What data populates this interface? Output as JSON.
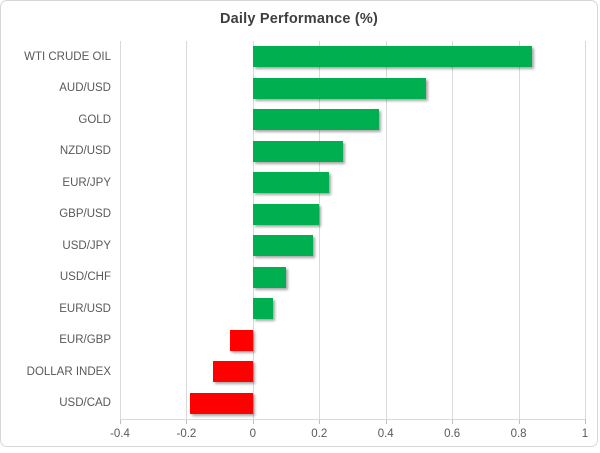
{
  "chart": {
    "title": "Daily Performance (%)"
  },
  "chart_data": {
    "type": "bar",
    "orientation": "horizontal",
    "title": "Daily Performance (%)",
    "categories": [
      "WTI CRUDE OIL",
      "AUD/USD",
      "GOLD",
      "NZD/USD",
      "EUR/JPY",
      "GBP/USD",
      "USD/JPY",
      "USD/CHF",
      "EUR/USD",
      "EUR/GBP",
      "DOLLAR INDEX",
      "USD/CAD"
    ],
    "values": [
      0.84,
      0.52,
      0.38,
      0.27,
      0.23,
      0.2,
      0.18,
      0.1,
      0.06,
      -0.07,
      -0.12,
      -0.19
    ],
    "xlim": [
      -0.4,
      1.0
    ],
    "xticks": [
      -0.4,
      -0.2,
      0,
      0.2,
      0.4,
      0.6,
      0.8,
      1
    ],
    "xtick_labels": [
      "-0.4",
      "-0.2",
      "0",
      "0.2",
      "0.4",
      "0.6",
      "0.8",
      "1"
    ],
    "grid": true,
    "legend": "none",
    "positive_color": "#00B050",
    "negative_color": "#FF0000",
    "gridline_color": "#D9D9D9",
    "label_color": "#595959",
    "title_color": "#3F3F3F"
  }
}
